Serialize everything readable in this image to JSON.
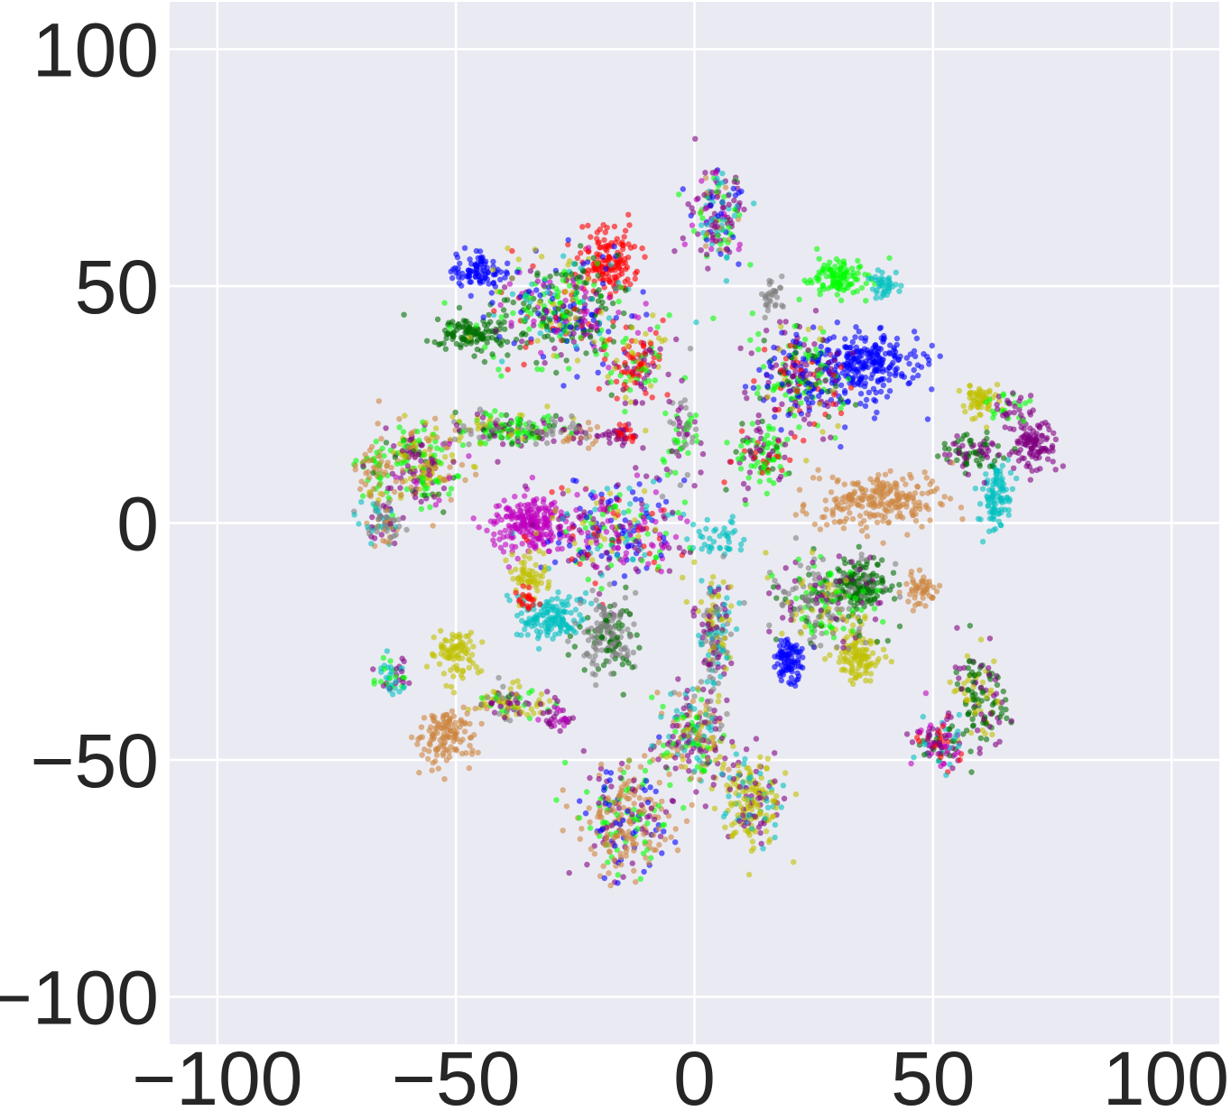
{
  "chart_data": {
    "type": "scatter",
    "title": "",
    "xlabel": "",
    "ylabel": "",
    "xlim": [
      -110,
      110
    ],
    "ylim": [
      -110,
      110
    ],
    "x_ticks": [
      -100,
      -50,
      0,
      50,
      100
    ],
    "y_ticks": [
      -100,
      -50,
      0,
      50,
      100
    ],
    "x_tick_labels": [
      "−100",
      "−50",
      "0",
      "50",
      "100"
    ],
    "y_tick_labels": [
      "−100",
      "−50",
      "0",
      "50",
      "100"
    ],
    "grid": true,
    "legend": "none",
    "background": "#eaeaf2",
    "grid_color": "#ffffff",
    "palette": {
      "blue": "#0000ff",
      "green": "#00ff00",
      "red": "#ff0000",
      "magenta": "#c000c0",
      "purple": "#800080",
      "cyan": "#00bfbf",
      "olive": "#bfbf00",
      "orange": "#cd853f",
      "gray": "#808080",
      "darkgreen": "#007000"
    },
    "clusters": [
      {
        "x": 5,
        "y": 65,
        "rx": 5,
        "ry": 9,
        "n": 170,
        "mix": {
          "green": 2,
          "purple": 3,
          "cyan": 2,
          "orange": 1,
          "magenta": 1,
          "blue": 1
        }
      },
      {
        "x": -45,
        "y": 53,
        "rx": 4,
        "ry": 3,
        "n": 90,
        "mix": {
          "blue": 1
        }
      },
      {
        "x": -18,
        "y": 55,
        "rx": 5,
        "ry": 6,
        "n": 140,
        "mix": {
          "red": 1
        }
      },
      {
        "x": -47,
        "y": 40,
        "rx": 6,
        "ry": 3,
        "n": 110,
        "mix": {
          "darkgreen": 1
        }
      },
      {
        "x": -28,
        "y": 45,
        "rx": 13,
        "ry": 10,
        "n": 420,
        "mix": {
          "darkgreen": 3,
          "green": 2,
          "blue": 2,
          "magenta": 1,
          "red": 1,
          "purple": 1,
          "cyan": 1,
          "olive": 1
        }
      },
      {
        "x": -12,
        "y": 33,
        "rx": 5,
        "ry": 7,
        "n": 130,
        "mix": {
          "red": 2,
          "purple": 1,
          "green": 1,
          "olive": 1
        }
      },
      {
        "x": -3,
        "y": 18,
        "rx": 3,
        "ry": 8,
        "n": 70,
        "mix": {
          "purple": 1,
          "gray": 1,
          "green": 1
        }
      },
      {
        "x": -67,
        "y": 12,
        "rx": 3,
        "ry": 6,
        "n": 70,
        "mix": {
          "green": 1,
          "orange": 1
        }
      },
      {
        "x": -57,
        "y": 12,
        "rx": 7,
        "ry": 7,
        "n": 250,
        "mix": {
          "green": 2,
          "olive": 2,
          "purple": 2,
          "orange": 2,
          "magenta": 1,
          "darkgreen": 1
        }
      },
      {
        "x": -65,
        "y": 0,
        "rx": 4,
        "ry": 4,
        "n": 80,
        "mix": {
          "gray": 2,
          "orange": 1,
          "cyan": 1,
          "purple": 1
        }
      },
      {
        "x": -40,
        "y": 20,
        "rx": 10,
        "ry": 3,
        "n": 170,
        "mix": {
          "green": 2,
          "olive": 1,
          "purple": 1,
          "gray": 1,
          "darkgreen": 1
        }
      },
      {
        "x": -25,
        "y": 19,
        "rx": 4,
        "ry": 2,
        "n": 40,
        "mix": {
          "purple": 1,
          "orange": 1,
          "gray": 1
        }
      },
      {
        "x": -15,
        "y": 19,
        "rx": 3,
        "ry": 2,
        "n": 40,
        "mix": {
          "red": 1,
          "purple": 1
        }
      },
      {
        "x": 30,
        "y": 52,
        "rx": 5,
        "ry": 3,
        "n": 110,
        "mix": {
          "green": 1
        }
      },
      {
        "x": 36,
        "y": 33,
        "rx": 9,
        "ry": 6,
        "n": 260,
        "mix": {
          "blue": 1
        }
      },
      {
        "x": 40,
        "y": 50,
        "rx": 3,
        "ry": 3,
        "n": 40,
        "mix": {
          "cyan": 1
        }
      },
      {
        "x": 16,
        "y": 48,
        "rx": 2,
        "ry": 3,
        "n": 30,
        "mix": {
          "gray": 1
        }
      },
      {
        "x": 22,
        "y": 30,
        "rx": 8,
        "ry": 10,
        "n": 300,
        "mix": {
          "blue": 2,
          "green": 2,
          "purple": 2,
          "darkgreen": 1,
          "red": 1,
          "olive": 1
        }
      },
      {
        "x": 14,
        "y": 14,
        "rx": 5,
        "ry": 5,
        "n": 110,
        "mix": {
          "green": 2,
          "red": 1,
          "purple": 1,
          "darkgreen": 1
        }
      },
      {
        "x": 71,
        "y": 17,
        "rx": 4,
        "ry": 4,
        "n": 110,
        "mix": {
          "purple": 1
        }
      },
      {
        "x": 60,
        "y": 26,
        "rx": 3,
        "ry": 3,
        "n": 60,
        "mix": {
          "olive": 1
        }
      },
      {
        "x": 63,
        "y": 6,
        "rx": 3,
        "ry": 6,
        "n": 100,
        "mix": {
          "cyan": 1
        }
      },
      {
        "x": 58,
        "y": 15,
        "rx": 5,
        "ry": 3,
        "n": 80,
        "mix": {
          "darkgreen": 1,
          "purple": 1
        }
      },
      {
        "x": 66,
        "y": 24,
        "rx": 4,
        "ry": 3,
        "n": 40,
        "mix": {
          "purple": 1,
          "green": 1
        }
      },
      {
        "x": 38,
        "y": 5,
        "rx": 11,
        "ry": 5,
        "n": 230,
        "mix": {
          "orange": 1
        }
      },
      {
        "x": -34,
        "y": 0,
        "rx": 7,
        "ry": 5,
        "n": 230,
        "mix": {
          "magenta": 1
        }
      },
      {
        "x": -16,
        "y": -2,
        "rx": 12,
        "ry": 9,
        "n": 330,
        "mix": {
          "magenta": 2,
          "purple": 2,
          "blue": 2,
          "olive": 1,
          "cyan": 1,
          "green": 1,
          "red": 1
        }
      },
      {
        "x": -30,
        "y": -20,
        "rx": 6,
        "ry": 4,
        "n": 140,
        "mix": {
          "cyan": 1
        }
      },
      {
        "x": -18,
        "y": -24,
        "rx": 5,
        "ry": 7,
        "n": 170,
        "mix": {
          "gray": 2,
          "darkgreen": 1
        }
      },
      {
        "x": -35,
        "y": -11,
        "rx": 4,
        "ry": 3,
        "n": 60,
        "mix": {
          "olive": 1
        }
      },
      {
        "x": -35,
        "y": -16,
        "rx": 2,
        "ry": 2,
        "n": 20,
        "mix": {
          "red": 1
        }
      },
      {
        "x": 5,
        "y": -3,
        "rx": 5,
        "ry": 3,
        "n": 40,
        "mix": {
          "cyan": 1
        }
      },
      {
        "x": 35,
        "y": -13,
        "rx": 5,
        "ry": 4,
        "n": 140,
        "mix": {
          "darkgreen": 1
        }
      },
      {
        "x": 48,
        "y": -14,
        "rx": 3,
        "ry": 3,
        "n": 50,
        "mix": {
          "orange": 1
        }
      },
      {
        "x": 34,
        "y": -28,
        "rx": 4,
        "ry": 4,
        "n": 110,
        "mix": {
          "olive": 1
        }
      },
      {
        "x": 28,
        "y": -16,
        "rx": 10,
        "ry": 8,
        "n": 260,
        "mix": {
          "gray": 2,
          "olive": 1,
          "green": 1,
          "purple": 1,
          "darkgreen": 1
        }
      },
      {
        "x": 20,
        "y": -29,
        "rx": 3,
        "ry": 4,
        "n": 90,
        "mix": {
          "blue": 1
        }
      },
      {
        "x": 60,
        "y": -37,
        "rx": 5,
        "ry": 8,
        "n": 140,
        "mix": {
          "darkgreen": 2,
          "purple": 1,
          "olive": 1
        }
      },
      {
        "x": 52,
        "y": -46,
        "rx": 5,
        "ry": 5,
        "n": 110,
        "mix": {
          "purple": 2,
          "magenta": 1,
          "red": 1,
          "cyan": 1,
          "darkgreen": 1
        }
      },
      {
        "x": -63,
        "y": -32,
        "rx": 3,
        "ry": 3,
        "n": 50,
        "mix": {
          "green": 1,
          "cyan": 1,
          "purple": 1
        }
      },
      {
        "x": -50,
        "y": -28,
        "rx": 4,
        "ry": 5,
        "n": 90,
        "mix": {
          "olive": 1
        }
      },
      {
        "x": -38,
        "y": -38,
        "rx": 6,
        "ry": 3,
        "n": 110,
        "mix": {
          "olive": 2,
          "purple": 1,
          "green": 1,
          "gray": 1
        }
      },
      {
        "x": -52,
        "y": -45,
        "rx": 5,
        "ry": 5,
        "n": 130,
        "mix": {
          "orange": 1
        }
      },
      {
        "x": -28,
        "y": -41,
        "rx": 3,
        "ry": 2,
        "n": 30,
        "mix": {
          "magenta": 1,
          "purple": 1
        }
      },
      {
        "x": -14,
        "y": -62,
        "rx": 8,
        "ry": 10,
        "n": 300,
        "mix": {
          "orange": 3,
          "blue": 1,
          "purple": 1,
          "green": 1
        }
      },
      {
        "x": 12,
        "y": -58,
        "rx": 6,
        "ry": 9,
        "n": 200,
        "mix": {
          "olive": 3,
          "purple": 1,
          "cyan": 1
        }
      },
      {
        "x": 0,
        "y": -45,
        "rx": 6,
        "ry": 9,
        "n": 230,
        "mix": {
          "purple": 2,
          "olive": 1,
          "cyan": 1,
          "orange": 1,
          "green": 1,
          "gray": 1
        }
      },
      {
        "x": 4,
        "y": -22,
        "rx": 3,
        "ry": 10,
        "n": 160,
        "mix": {
          "purple": 1,
          "cyan": 1,
          "gray": 1,
          "olive": 1
        }
      }
    ]
  }
}
